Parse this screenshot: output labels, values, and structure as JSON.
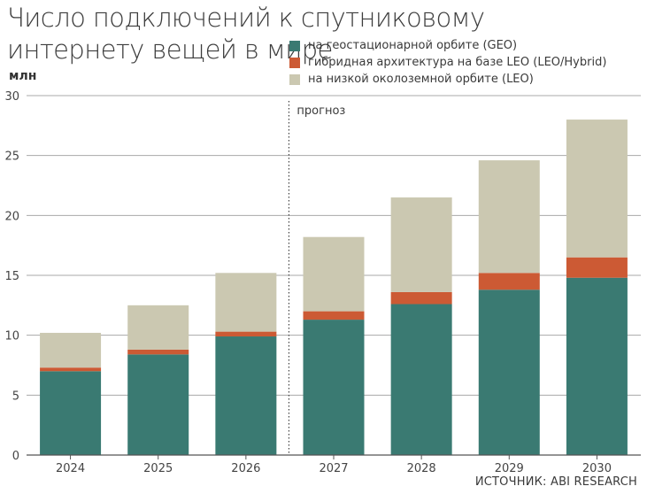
{
  "title": "Число подключений к спутниковому интернету вещей в мире",
  "unit": "млн",
  "source": "ИСТОЧНИК:  ABI RESEARCH",
  "forecast_label": "прогноз",
  "colors": {
    "geo": "#3a7a72",
    "hybrid": "#cc5a34",
    "leo": "#cbc8b1",
    "grid": "#a8a8a8",
    "axis": "#555555"
  },
  "chart_data": {
    "type": "bar",
    "stacked": true,
    "title": "Число подключений к спутниковому интернету вещей в мире",
    "ylabel": "млн",
    "ylim": [
      0,
      30
    ],
    "yticks": [
      0,
      5,
      10,
      15,
      20,
      25,
      30
    ],
    "grid": true,
    "legend_position": "top-right",
    "categories": [
      "2024",
      "2025",
      "2026",
      "2027",
      "2028",
      "2029",
      "2030"
    ],
    "forecast_from": "2027",
    "series": [
      {
        "name": "на геостационарной орбите (GEO)",
        "key": "geo",
        "values": [
          7.0,
          8.4,
          9.9,
          11.3,
          12.6,
          13.8,
          14.8
        ]
      },
      {
        "name": "гибридная архитектура на базе LEO (LEO/Hybrid)",
        "key": "hybrid",
        "values": [
          0.3,
          0.4,
          0.4,
          0.7,
          1.0,
          1.4,
          1.7
        ]
      },
      {
        "name": "на низкой околоземной орбите (LEO)",
        "key": "leo",
        "values": [
          2.9,
          3.7,
          4.9,
          6.2,
          7.9,
          9.4,
          11.5
        ]
      }
    ]
  }
}
